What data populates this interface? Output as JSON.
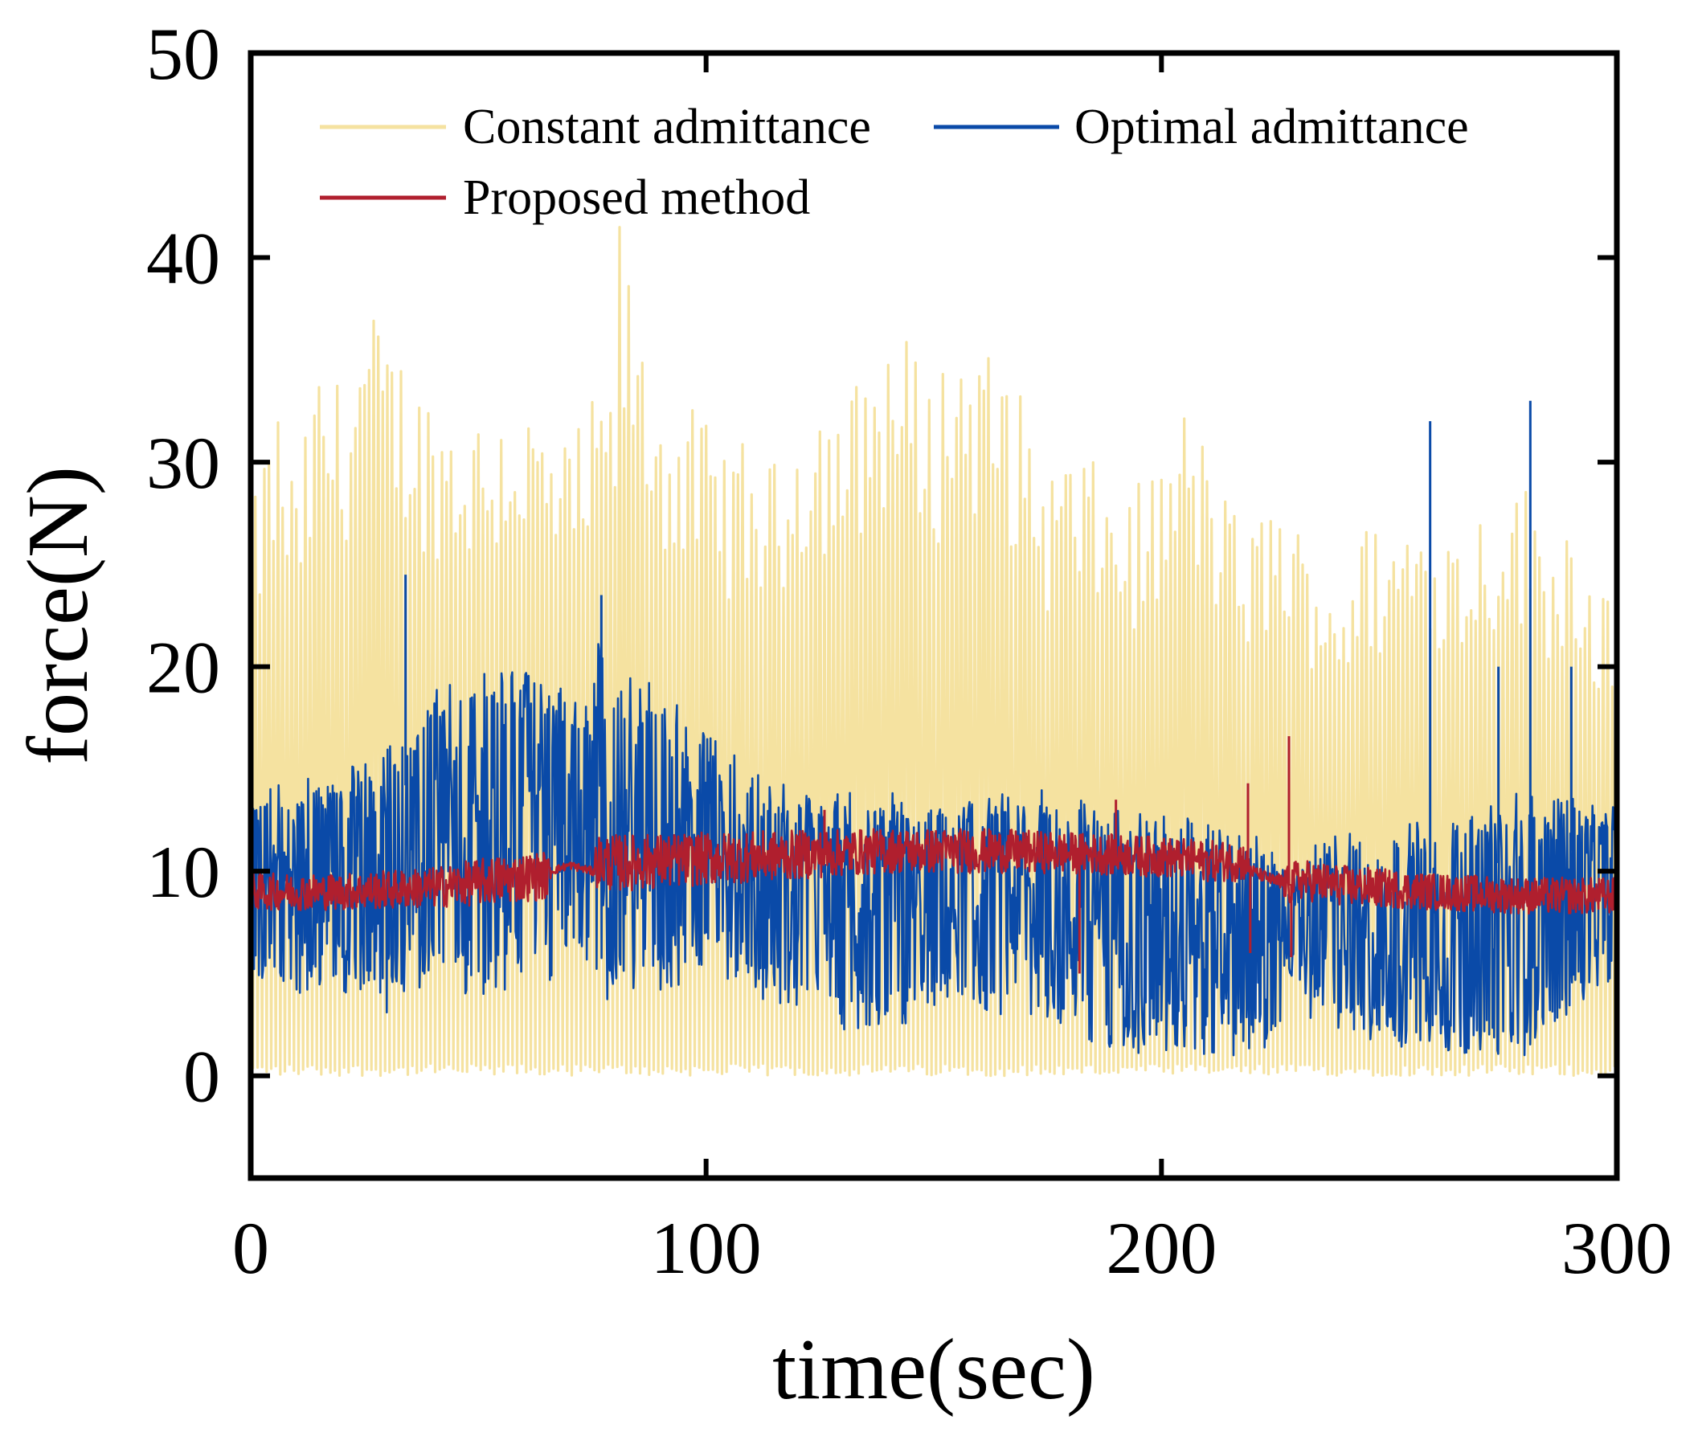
{
  "chart_data": {
    "type": "line",
    "title": "",
    "xlabel": "time(sec)",
    "ylabel": "force(N)",
    "xlim": [
      0,
      300
    ],
    "ylim": [
      -5,
      50
    ],
    "xticks": [
      0,
      100,
      200,
      300
    ],
    "yticks": [
      0,
      10,
      20,
      30,
      40,
      50
    ],
    "xtick_labels": [
      "0",
      "100",
      "200",
      "300"
    ],
    "ytick_labels": [
      "0",
      "10",
      "20",
      "30",
      "40",
      "50"
    ],
    "grid": false,
    "legend_position": "top",
    "series": [
      {
        "name": "Constant admittance",
        "color": "#f5e2a0",
        "style": "oscillating envelope 0 to peak",
        "x": [
          0,
          3,
          6,
          10,
          15,
          20,
          25,
          28,
          32,
          38,
          45,
          52,
          58,
          65,
          70,
          75,
          80,
          81,
          85,
          90,
          95,
          100,
          105,
          110,
          115,
          120,
          125,
          130,
          135,
          140,
          145,
          150,
          155,
          160,
          165,
          170,
          175,
          180,
          185,
          190,
          195,
          200,
          205,
          210,
          215,
          220,
          225,
          230,
          235,
          240,
          245,
          250,
          255,
          260,
          265,
          270,
          275,
          280,
          285,
          290,
          295,
          300
        ],
        "peaks": [
          27,
          31,
          33,
          29,
          35,
          34,
          38,
          37,
          36,
          34,
          33,
          33,
          34,
          32,
          31,
          33,
          35,
          42,
          37,
          34,
          33,
          32,
          31,
          31,
          30,
          33,
          34,
          33,
          35,
          37,
          36,
          34,
          37,
          36,
          35,
          33,
          30,
          31,
          30,
          29,
          29,
          30,
          33,
          31,
          28,
          27,
          29,
          27,
          26,
          25,
          27,
          27,
          28,
          28,
          27,
          28,
          29,
          29,
          27,
          28,
          25,
          23
        ],
        "minimum": 0
      },
      {
        "name": "Optimal admittance",
        "color": "#0a4aa8",
        "style": "noisy band",
        "x": [
          0,
          10,
          20,
          30,
          40,
          50,
          60,
          70,
          75,
          76,
          80,
          90,
          100,
          110,
          120,
          130,
          140,
          150,
          160,
          170,
          180,
          190,
          200,
          210,
          220,
          226,
          228,
          230,
          240,
          250,
          260,
          270,
          280,
          290,
          300
        ],
        "upper": [
          14,
          15,
          15,
          16,
          19,
          20,
          20,
          19,
          18,
          22,
          20,
          19,
          17,
          15,
          14,
          14,
          14,
          14,
          14,
          14,
          14,
          13,
          13,
          13,
          12,
          11,
          9,
          11,
          12,
          12,
          13,
          13,
          14,
          14,
          14
        ],
        "lower": [
          4,
          4,
          4,
          3,
          4,
          4,
          4,
          5,
          4,
          3,
          4,
          4,
          5,
          4,
          3,
          2,
          2,
          3,
          3,
          3,
          1,
          1,
          1,
          1,
          1,
          1,
          5,
          3,
          2,
          1,
          1,
          1,
          1,
          3,
          4
        ],
        "spikes": [
          {
            "x": 34,
            "y": 24.5
          },
          {
            "x": 77,
            "y": 23.5
          },
          {
            "x": 259,
            "y": 32
          },
          {
            "x": 281,
            "y": 33
          },
          {
            "x": 290,
            "y": 20
          },
          {
            "x": 274,
            "y": 20
          }
        ]
      },
      {
        "name": "Proposed method",
        "color": "#b01f2e",
        "style": "thin noisy band",
        "x": [
          0,
          20,
          40,
          55,
          65,
          66,
          70,
          75,
          76,
          80,
          100,
          120,
          140,
          160,
          180,
          200,
          210,
          218,
          220,
          225,
          228,
          230,
          240,
          260,
          280,
          300
        ],
        "center": [
          9,
          9,
          9.2,
          9.6,
          9.8,
          10,
          10.3,
          10,
          10.5,
          10.4,
          10.6,
          10.8,
          11,
          11,
          10.9,
          10.7,
          10.5,
          10.5,
          10,
          9.5,
          9.3,
          9.6,
          9.3,
          9,
          8.8,
          8.8
        ],
        "halfwidth": [
          0.9,
          0.9,
          1,
          1.2,
          1.2,
          0.2,
          0.2,
          0.2,
          1.3,
          1.4,
          1.3,
          1.2,
          1.1,
          1.1,
          1,
          1,
          1,
          1,
          0.3,
          0.3,
          1,
          1,
          1,
          0.9,
          0.9,
          0.9
        ],
        "spikes": [
          {
            "x": 126,
            "y": 13
          },
          {
            "x": 182,
            "y": 5
          },
          {
            "x": 190,
            "y": 13.5
          },
          {
            "x": 219,
            "y": 14.3
          },
          {
            "x": 228,
            "y": 16.6
          },
          {
            "x": 228.5,
            "y": 5.8
          },
          {
            "x": 219.5,
            "y": 6
          }
        ]
      }
    ]
  }
}
